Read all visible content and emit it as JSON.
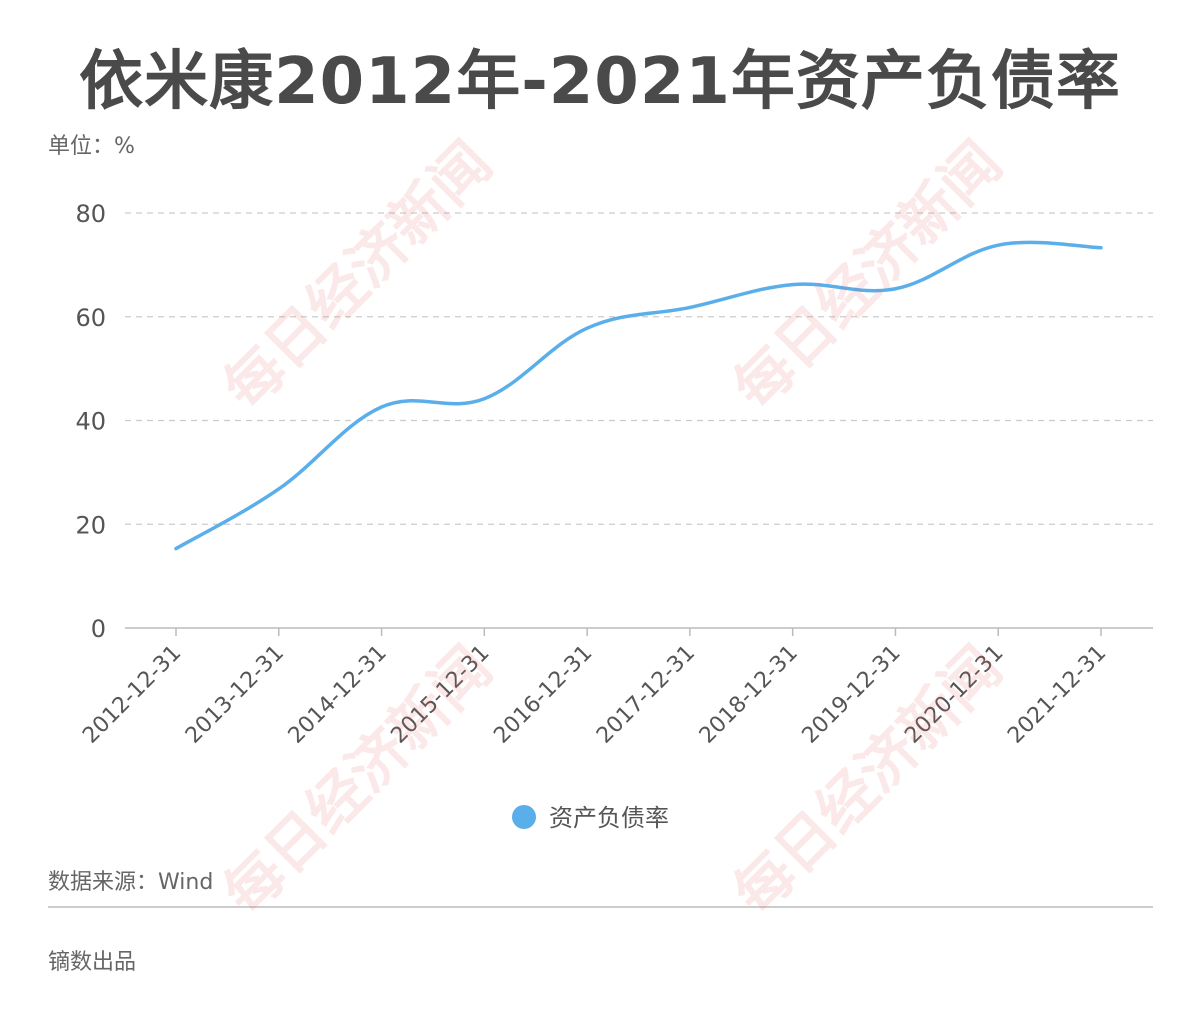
{
  "header": {
    "title": "依米康2012年-2021年资产负债率"
  },
  "unit_label": "单位：%",
  "source_label": "数据来源：Wind",
  "credit_label": "镝数出品",
  "watermark_text": "每日经济新闻",
  "colors": {
    "line": "#5aaeea",
    "grid": "#cccccc",
    "axis": "#bbbbbb",
    "text": "#555555",
    "title": "#4a4a4a"
  },
  "chart_data": {
    "type": "line",
    "categories": [
      "2012-12-31",
      "2013-12-31",
      "2014-12-31",
      "2015-12-31",
      "2016-12-31",
      "2017-12-31",
      "2018-12-31",
      "2019-12-31",
      "2020-12-31",
      "2021-12-31"
    ],
    "series": [
      {
        "name": "资产负债率",
        "values": [
          15.3,
          26.8,
          42.6,
          44.2,
          57.8,
          61.8,
          66.2,
          65.4,
          73.8,
          73.3
        ]
      }
    ],
    "ylim": [
      0,
      80
    ],
    "yticks": [
      0,
      20,
      40,
      60,
      80
    ],
    "grid": true,
    "legend": "bottom-center",
    "smooth": true
  }
}
